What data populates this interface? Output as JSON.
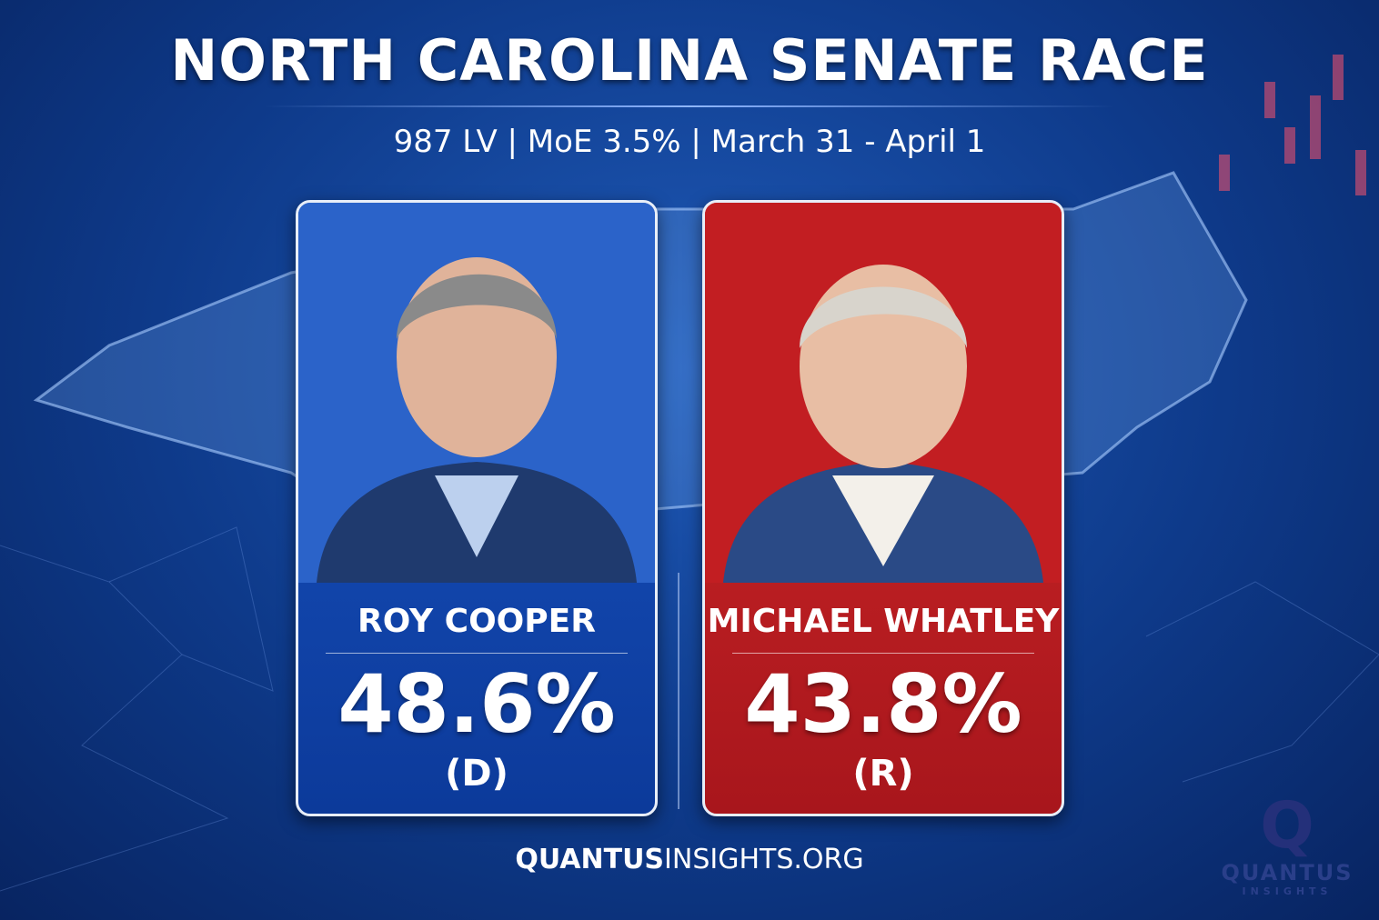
{
  "header": {
    "title": "NORTH CAROLINA SENATE RACE",
    "subtitle": "987 LV | MoE 3.5% | March 31 - April 1"
  },
  "candidates": [
    {
      "name": "ROY COOPER",
      "percent": "48.6%",
      "party": "(D)"
    },
    {
      "name": "MICHAEL WHATLEY",
      "percent": "43.8%",
      "party": "(R)"
    }
  ],
  "footer": {
    "site_bold": "QUANTUS",
    "site_rest": "INSIGHTS.ORG"
  },
  "logo": {
    "letter": "Q",
    "name": "QUANTUS",
    "tagline": "INSIGHTS"
  }
}
